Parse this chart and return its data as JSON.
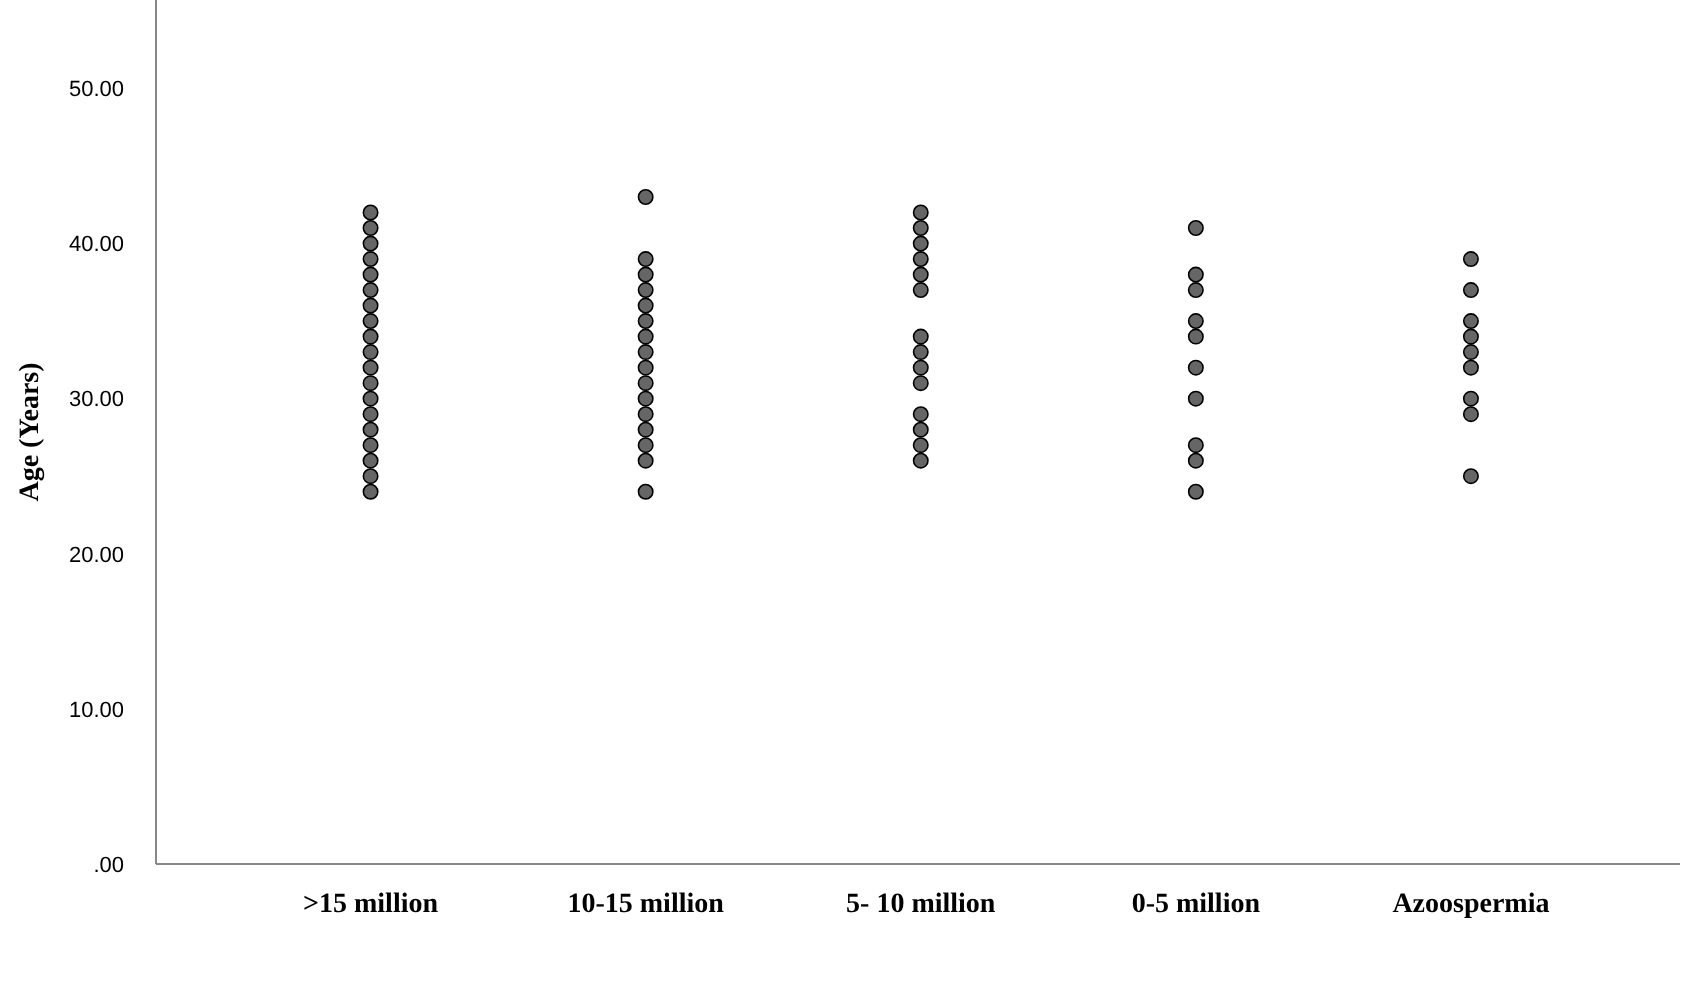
{
  "chart_data": {
    "type": "scatter",
    "ylabel": "Age (Years)",
    "categories": [
      ">15 million",
      "10-15 million",
      "5- 10 million",
      "0-5 million",
      "Azoospermia"
    ],
    "series": [
      {
        "color": "#666666",
        "x": [
          ">15 million",
          ">15 million",
          ">15 million",
          ">15 million",
          ">15 million",
          ">15 million",
          ">15 million",
          ">15 million",
          ">15 million",
          ">15 million",
          ">15 million",
          ">15 million",
          ">15 million",
          ">15 million",
          ">15 million",
          ">15 million",
          ">15 million",
          ">15 million",
          ">15 million",
          "10-15 million",
          "10-15 million",
          "10-15 million",
          "10-15 million",
          "10-15 million",
          "10-15 million",
          "10-15 million",
          "10-15 million",
          "10-15 million",
          "10-15 million",
          "10-15 million",
          "10-15 million",
          "10-15 million",
          "10-15 million",
          "10-15 million",
          "10-15 million",
          "5- 10 million",
          "5- 10 million",
          "5- 10 million",
          "5- 10 million",
          "5- 10 million",
          "5- 10 million",
          "5- 10 million",
          "5- 10 million",
          "5- 10 million",
          "5- 10 million",
          "5- 10 million",
          "5- 10 million",
          "5- 10 million",
          "5- 10 million",
          "0-5 million",
          "0-5 million",
          "0-5 million",
          "0-5 million",
          "0-5 million",
          "0-5 million",
          "0-5 million",
          "0-5 million",
          "0-5 million",
          "0-5 million",
          "Azoospermia",
          "Azoospermia",
          "Azoospermia",
          "Azoospermia",
          "Azoospermia",
          "Azoospermia",
          "Azoospermia",
          "Azoospermia",
          "Azoospermia"
        ],
        "values": [
          24,
          25,
          26,
          27,
          28,
          29,
          30,
          31,
          32,
          33,
          34,
          35,
          36,
          37,
          38,
          39,
          40,
          41,
          42,
          24,
          26,
          27,
          28,
          29,
          30,
          31,
          32,
          33,
          34,
          35,
          36,
          37,
          38,
          39,
          43,
          26,
          27,
          28,
          29,
          31,
          32,
          33,
          34,
          37,
          38,
          39,
          40,
          41,
          42,
          24,
          26,
          27,
          30,
          32,
          34,
          35,
          37,
          38,
          41,
          25,
          29,
          30,
          32,
          33,
          34,
          35,
          37,
          39
        ]
      }
    ],
    "ylim": [
      0,
      55.7
    ],
    "yticks": [
      {
        "value": 0,
        "label": ".00"
      },
      {
        "value": 10,
        "label": "10.00"
      },
      {
        "value": 20,
        "label": "20.00"
      },
      {
        "value": 30,
        "label": "30.00"
      },
      {
        "value": 40,
        "label": "40.00"
      },
      {
        "value": 50,
        "label": "50.00"
      }
    ],
    "grid": false,
    "legend": false,
    "marker": "circle"
  }
}
